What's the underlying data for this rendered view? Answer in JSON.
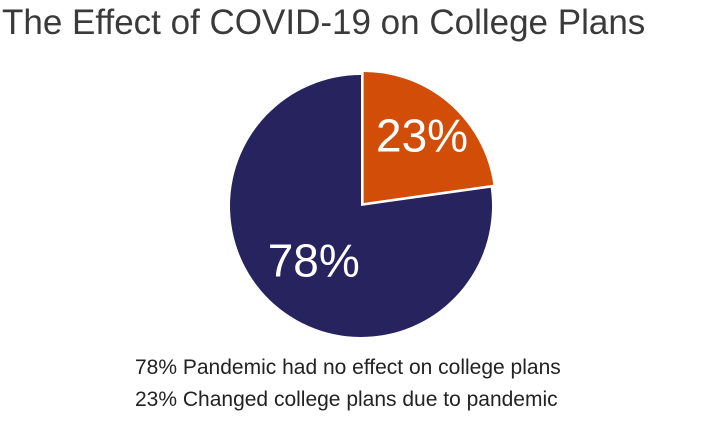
{
  "chart_data": {
    "type": "pie",
    "title": "The Effect of COVID-19 on College Plans",
    "slices": [
      {
        "label": "Changed college plans due to pandemic",
        "value": 23,
        "display": "23%",
        "color": "#d24d07",
        "exploded": true
      },
      {
        "label": "Pandemic had no effect on college plans",
        "value": 78,
        "display": "78%",
        "color": "#27235e",
        "exploded": false
      }
    ],
    "legend": [
      "78% Pandemic had no effect on college plans",
      "23% Changed college plans due to pandemic"
    ],
    "legend_position": "bottom"
  }
}
